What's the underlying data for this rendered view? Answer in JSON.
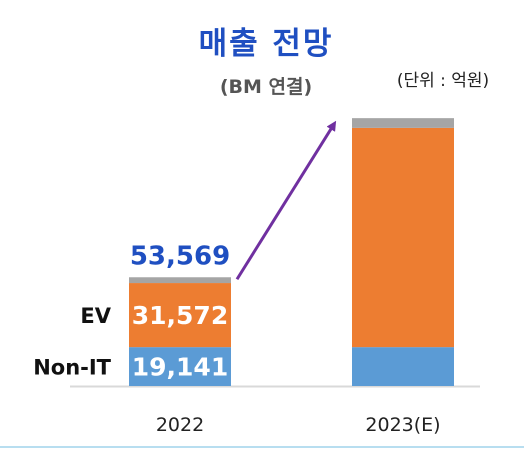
{
  "chart_data": {
    "type": "bar",
    "stacked": true,
    "title": "매출 전망",
    "subtitle": "(BM 연결)",
    "unit_label": "(단위 : 억원)",
    "categories": [
      "2022",
      "2023(E)"
    ],
    "series": [
      {
        "name": "Non-IT",
        "values": [
          19141,
          19141
        ],
        "color": "#5b9bd5",
        "data_labels": [
          "19,141",
          ""
        ]
      },
      {
        "name": "EV",
        "values": [
          31572,
          108000
        ],
        "color": "#ed7d31",
        "data_labels": [
          "31,572",
          ""
        ]
      },
      {
        "name": "",
        "values": [
          2856,
          4800
        ],
        "color": "#a5a5a5",
        "data_labels": [
          "",
          ""
        ]
      }
    ],
    "totals": [
      "53,569",
      ""
    ],
    "ylim": [
      0,
      133000
    ],
    "grid": false,
    "legend": "inline-left",
    "colors": {
      "title": "#1f4fc1",
      "total_label": "#1f4fc1",
      "arrow": "#7030a0",
      "axis": "#d9d9d9"
    }
  }
}
